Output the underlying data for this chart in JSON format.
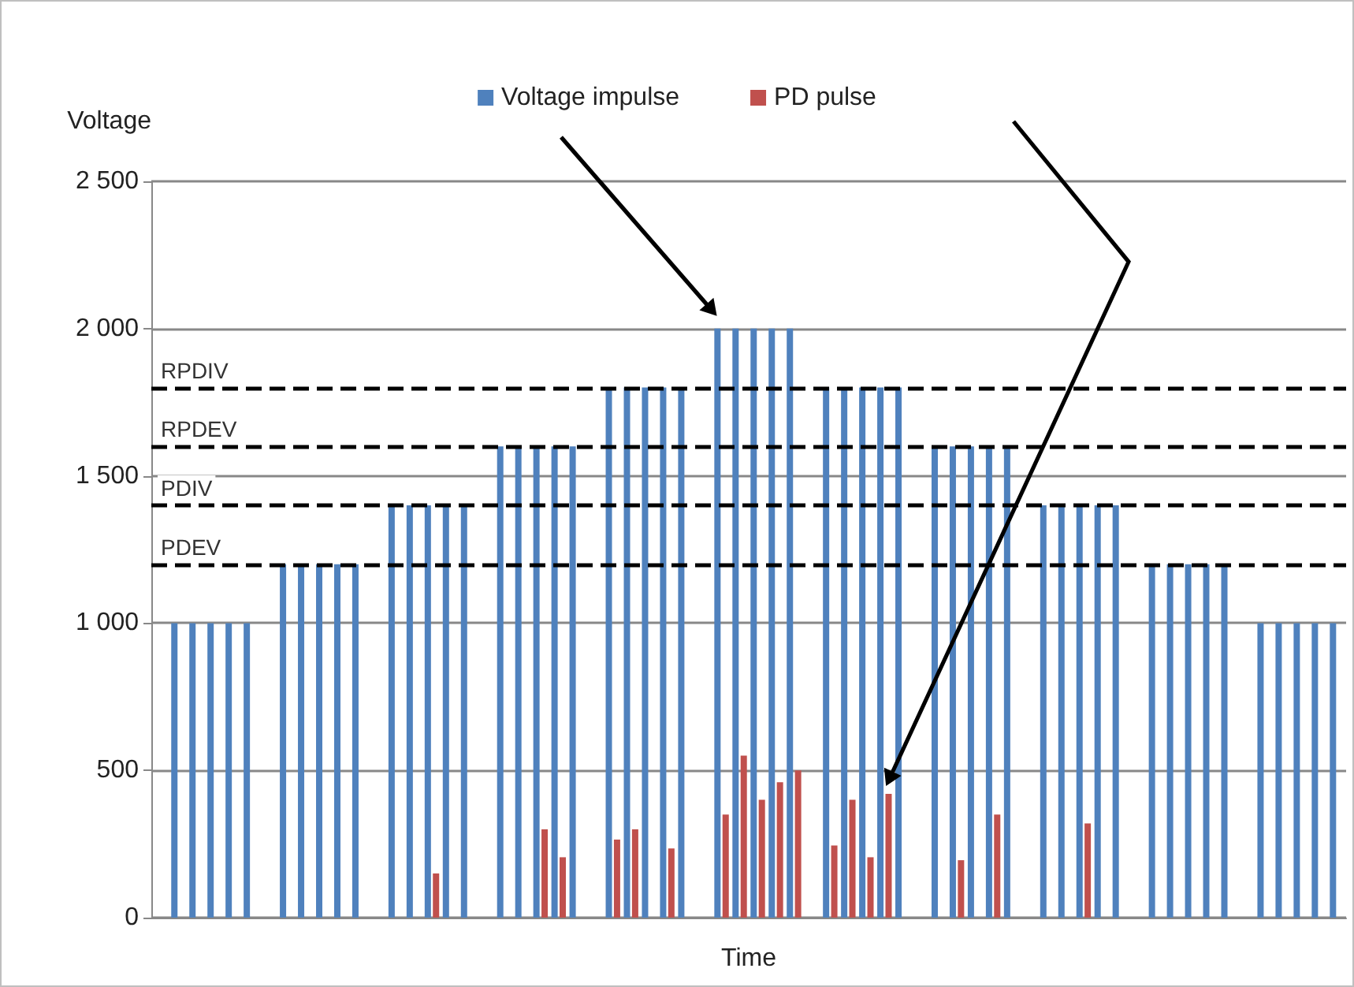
{
  "chart_data": {
    "type": "bar",
    "xlabel": "Time",
    "ylabel": "Voltage",
    "categories": [
      null,
      null,
      null,
      null,
      null,
      null,
      null,
      null,
      null,
      null,
      null,
      null,
      null,
      null,
      null,
      null,
      null,
      null,
      null,
      null,
      null,
      null,
      null,
      null,
      null,
      null,
      null,
      null,
      null,
      null,
      null,
      null,
      null,
      null,
      null,
      null,
      null,
      null,
      null,
      null,
      null,
      null,
      null,
      null,
      null,
      null,
      null,
      null,
      null,
      null,
      null,
      null,
      null,
      null,
      null,
      null,
      null,
      null,
      null,
      null,
      null,
      null,
      null,
      null,
      null,
      null
    ],
    "series": [
      {
        "name": "Voltage impulse",
        "color": "#4f81bd",
        "values": [
          null,
          1000,
          1000,
          1000,
          1000,
          1000,
          null,
          1200,
          1200,
          1200,
          1200,
          1200,
          null,
          1400,
          1400,
          1400,
          1400,
          1400,
          null,
          1600,
          1600,
          1600,
          1600,
          1600,
          null,
          1800,
          1800,
          1800,
          1800,
          1800,
          null,
          2000,
          2000,
          2000,
          2000,
          2000,
          null,
          1800,
          1800,
          1800,
          1800,
          1800,
          null,
          1600,
          1600,
          1600,
          1600,
          1600,
          null,
          1400,
          1400,
          1400,
          1400,
          1400,
          null,
          1200,
          1200,
          1200,
          1200,
          1200,
          null,
          1000,
          1000,
          1000,
          1000,
          1000
        ]
      },
      {
        "name": "PD pulse",
        "color": "#c0504d",
        "values": [
          null,
          null,
          null,
          null,
          null,
          null,
          null,
          null,
          null,
          null,
          null,
          null,
          null,
          null,
          null,
          150,
          null,
          null,
          null,
          null,
          null,
          300,
          205,
          null,
          null,
          265,
          300,
          null,
          235,
          null,
          null,
          350,
          550,
          400,
          460,
          500,
          null,
          245,
          400,
          205,
          420,
          null,
          null,
          null,
          195,
          null,
          350,
          null,
          null,
          null,
          null,
          320,
          null,
          null,
          null,
          null,
          null,
          null,
          null,
          null,
          null,
          null,
          null,
          null,
          null,
          null
        ]
      }
    ],
    "ylim": [
      0,
      2500
    ],
    "yticks": [
      0,
      500,
      {
        "value": 1000,
        "label": "1 000"
      },
      {
        "value": 1500,
        "label": "1 500"
      },
      {
        "value": 2000,
        "label": "2 000"
      },
      {
        "value": 2500,
        "label": "2 500"
      }
    ],
    "ref_lines": [
      {
        "axis": "y",
        "value": 1800,
        "label": "RPDIV",
        "color": "#000000",
        "line_style": "dashed"
      },
      {
        "axis": "y",
        "value": 1600,
        "label": "RPDEV",
        "color": "#000000",
        "line_style": "dashed"
      },
      {
        "axis": "y",
        "value": 1400,
        "label": "PDIV",
        "color": "#000000",
        "line_style": "dashed"
      },
      {
        "axis": "y",
        "value": 1200,
        "label": "PDEV",
        "color": "#000000",
        "line_style": "dashed"
      }
    ],
    "grid": "y",
    "legend": "top",
    "tick_labels": "y"
  }
}
